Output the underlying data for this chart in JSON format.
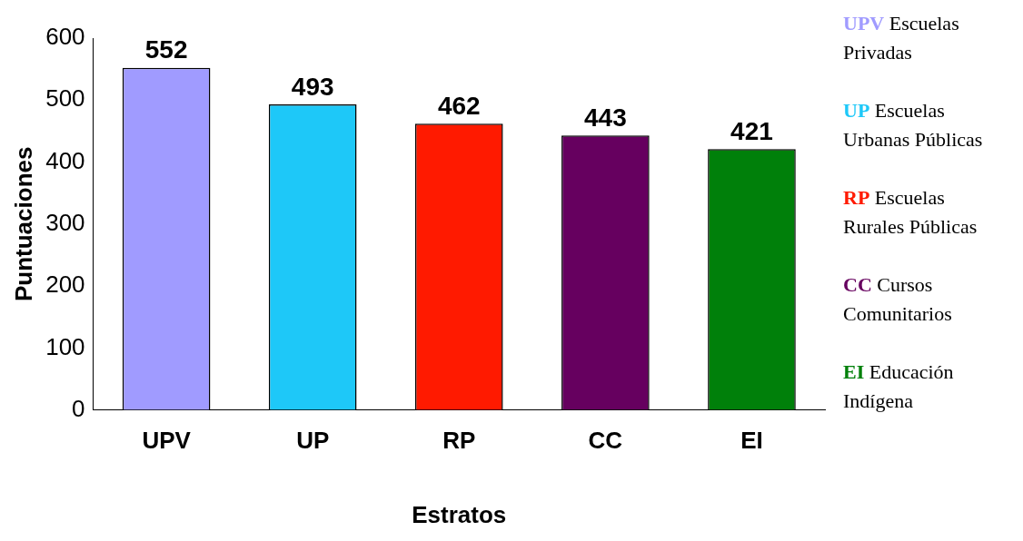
{
  "chart_data": {
    "type": "bar",
    "xlabel": "Estratos",
    "ylabel": "Puntuaciones",
    "categories": [
      "UPV",
      "UP",
      "RP",
      "CC",
      "EI"
    ],
    "values": [
      552,
      493,
      462,
      443,
      421
    ],
    "colors": [
      "#a09bff",
      "#1ec8f8",
      "#ff1a00",
      "#66005f",
      "#00800a"
    ],
    "ylim": [
      0,
      600
    ],
    "yticks": [
      0,
      100,
      200,
      300,
      400,
      500,
      600
    ],
    "data_labels": true,
    "legend": false,
    "annotations": [
      "UPV Escuelas Privadas",
      "UP Escuelas Urbanas Públicas",
      "RP Escuelas Rurales Públicas",
      "CC Cursos Comunitarios",
      "EI Educación Indígena"
    ]
  }
}
